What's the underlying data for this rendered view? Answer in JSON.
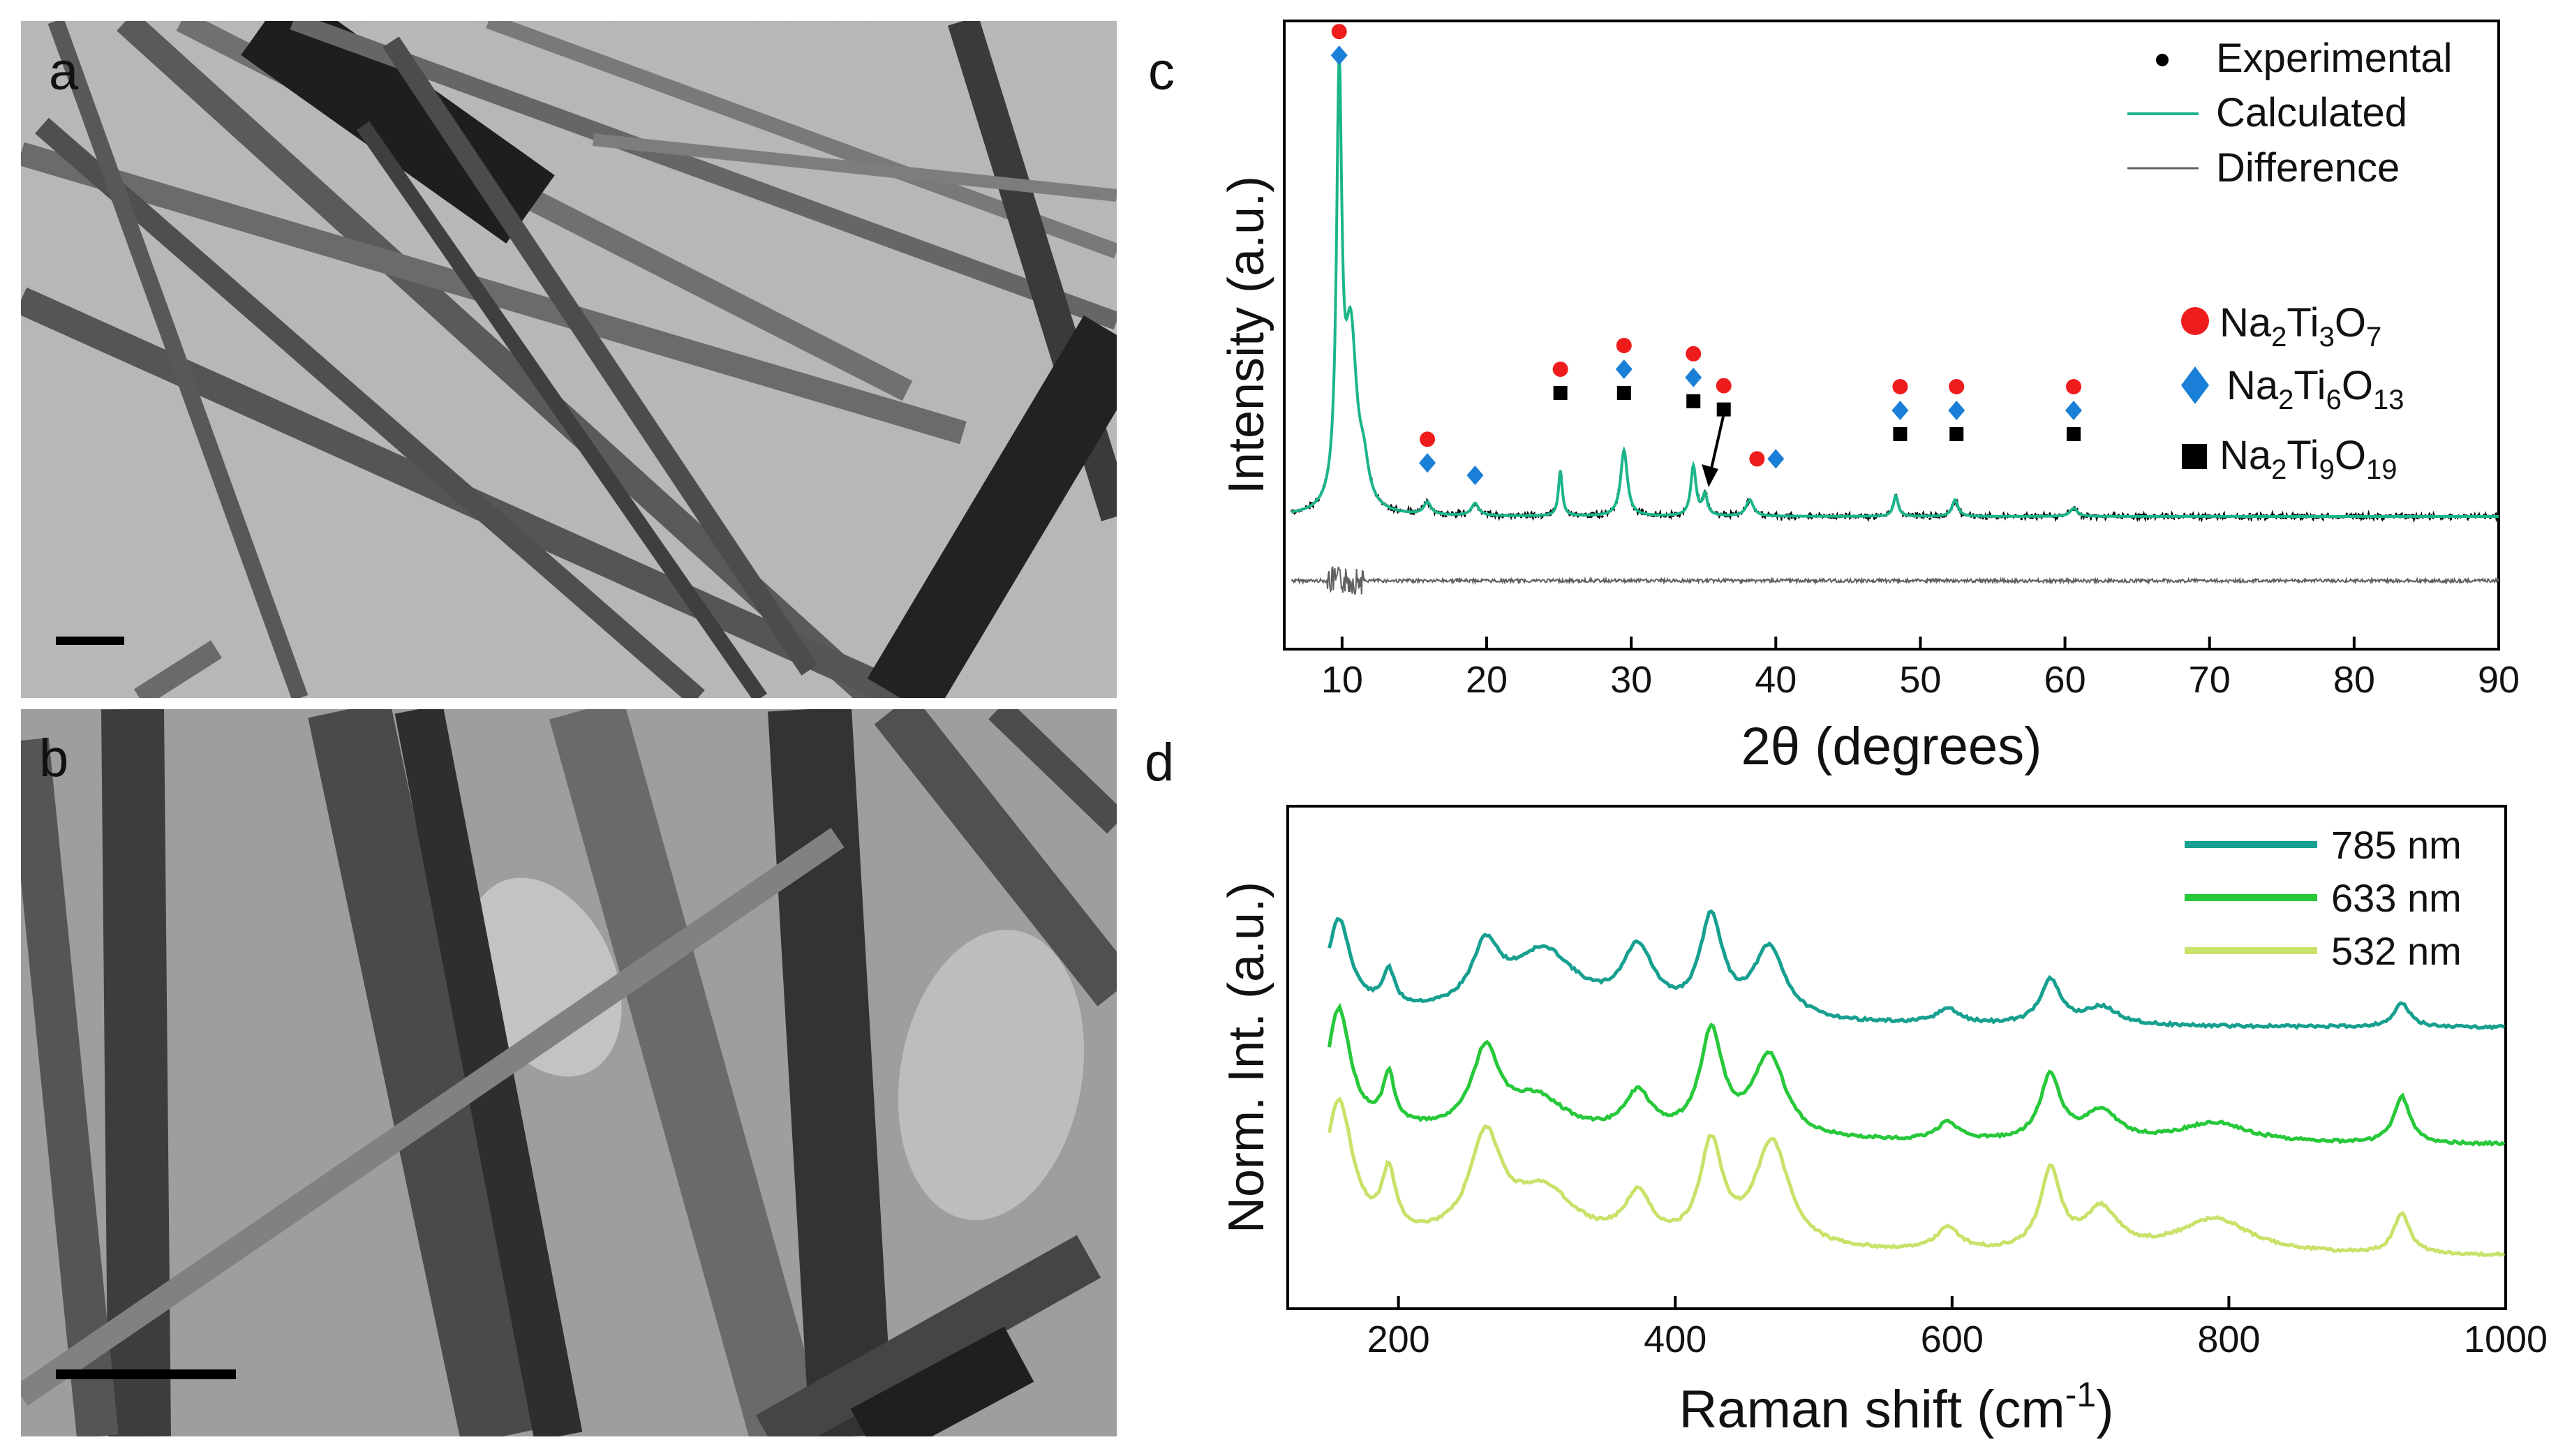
{
  "panels": {
    "a": {
      "label": "a",
      "description_hidden": true
    },
    "b": {
      "label": "b"
    },
    "c": {
      "label": "c"
    },
    "d": {
      "label": "d"
    }
  },
  "colors": {
    "experimental": "#000000",
    "calculated": "#1bb58a",
    "difference": "#606060",
    "na2ti3o7": "#ee1c1c",
    "na2ti6o13": "#1a7fd6",
    "na2ti9o19": "#000000",
    "r785": "#17a090",
    "r633": "#27c83a",
    "r532": "#c8e26a"
  },
  "chart_data": [
    {
      "type": "line",
      "panel": "c",
      "title": "",
      "xlabel": "2θ (degrees)",
      "ylabel": "Intensity (a.u.)",
      "xlim": [
        6,
        90
      ],
      "xticks": [
        10,
        20,
        30,
        40,
        50,
        60,
        70,
        80,
        90
      ],
      "legend": [
        {
          "label": "Experimental",
          "marker": "dot"
        },
        {
          "label": "Calculated",
          "marker": "line"
        },
        {
          "label": "Difference",
          "marker": "line"
        }
      ],
      "phases": [
        {
          "name": "Na2Ti3O7",
          "base": "Na",
          "s1": "2",
          "mid": "Ti",
          "s2": "3",
          "o": "O",
          "s3": "7",
          "symbol": "circle"
        },
        {
          "name": "Na2Ti6O13",
          "base": "Na",
          "s1": "2",
          "mid": "Ti",
          "s2": "6",
          "o": "O",
          "s3": "13",
          "symbol": "diamond"
        },
        {
          "name": "Na2Ti9O19",
          "base": "Na",
          "s1": "2",
          "mid": "Ti",
          "s2": "9",
          "o": "O",
          "s3": "19",
          "symbol": "square"
        }
      ],
      "peaks": [
        {
          "x": 9.8,
          "h": 1.0,
          "w": 0.22
        },
        {
          "x": 10.6,
          "h": 0.42,
          "w": 0.5
        },
        {
          "x": 11.5,
          "h": 0.08,
          "w": 0.4
        },
        {
          "x": 15.9,
          "h": 0.03,
          "w": 0.3
        },
        {
          "x": 19.2,
          "h": 0.03,
          "w": 0.3
        },
        {
          "x": 25.1,
          "h": 0.11,
          "w": 0.16
        },
        {
          "x": 29.5,
          "h": 0.16,
          "w": 0.28
        },
        {
          "x": 34.3,
          "h": 0.12,
          "w": 0.22
        },
        {
          "x": 35.1,
          "h": 0.05,
          "w": 0.2
        },
        {
          "x": 38.2,
          "h": 0.04,
          "w": 0.3
        },
        {
          "x": 48.3,
          "h": 0.05,
          "w": 0.2
        },
        {
          "x": 52.4,
          "h": 0.04,
          "w": 0.25
        },
        {
          "x": 60.6,
          "h": 0.02,
          "w": 0.3
        }
      ],
      "markers": [
        {
          "x": 9.8,
          "stack": [
            "circle",
            "diamond"
          ],
          "level": 1.12
        },
        {
          "x": 15.9,
          "stack": [
            "circle",
            "diamond"
          ],
          "level": 0.13
        },
        {
          "x": 19.2,
          "stack": [
            "diamond"
          ],
          "level": 0.1
        },
        {
          "x": 25.1,
          "stack": [
            "circle",
            "square"
          ],
          "level": 0.3
        },
        {
          "x": 29.5,
          "stack": [
            "circle",
            "diamond",
            "square"
          ],
          "level": 0.3
        },
        {
          "x": 34.3,
          "stack": [
            "circle",
            "diamond",
            "square"
          ],
          "level": 0.28
        },
        {
          "x": 36.4,
          "stack": [
            "circle",
            "square"
          ],
          "level": 0.26
        },
        {
          "x": 38.7,
          "stack": [
            "circle"
          ],
          "level": 0.14
        },
        {
          "x": 40.0,
          "stack": [
            "diamond"
          ],
          "level": 0.14
        },
        {
          "x": 48.6,
          "stack": [
            "circle",
            "diamond",
            "square"
          ],
          "level": 0.2
        },
        {
          "x": 52.5,
          "stack": [
            "circle",
            "diamond",
            "square"
          ],
          "level": 0.2
        },
        {
          "x": 60.6,
          "stack": [
            "circle",
            "diamond",
            "square"
          ],
          "level": 0.2
        }
      ]
    },
    {
      "type": "line",
      "panel": "d",
      "title": "",
      "xlabel": "Raman shift (cm",
      "xlabel_sup": "-1",
      "xlabel_end": ")",
      "ylabel": "Norm. Int. (a.u.)",
      "xlim": [
        120,
        1000
      ],
      "xticks": [
        200,
        400,
        600,
        800,
        1000
      ],
      "series": [
        {
          "name": "785 nm",
          "offset": 0.78,
          "baseline": 0.0,
          "peaks": [
            {
              "x": 157,
              "h": 0.3,
              "w": 10
            },
            {
              "x": 193,
              "h": 0.12,
              "w": 5
            },
            {
              "x": 263,
              "h": 0.2,
              "w": 12
            },
            {
              "x": 305,
              "h": 0.22,
              "w": 30
            },
            {
              "x": 373,
              "h": 0.22,
              "w": 14
            },
            {
              "x": 426,
              "h": 0.33,
              "w": 10
            },
            {
              "x": 468,
              "h": 0.24,
              "w": 14
            },
            {
              "x": 597,
              "h": 0.05,
              "w": 10
            },
            {
              "x": 671,
              "h": 0.15,
              "w": 9
            },
            {
              "x": 708,
              "h": 0.06,
              "w": 15
            },
            {
              "x": 925,
              "h": 0.08,
              "w": 7
            }
          ]
        },
        {
          "name": "633 nm",
          "offset": 0.38,
          "baseline": 0.0,
          "peaks": [
            {
              "x": 157,
              "h": 0.4,
              "w": 10
            },
            {
              "x": 193,
              "h": 0.17,
              "w": 5
            },
            {
              "x": 263,
              "h": 0.27,
              "w": 12
            },
            {
              "x": 300,
              "h": 0.12,
              "w": 25
            },
            {
              "x": 373,
              "h": 0.14,
              "w": 12
            },
            {
              "x": 426,
              "h": 0.35,
              "w": 10
            },
            {
              "x": 468,
              "h": 0.28,
              "w": 14
            },
            {
              "x": 597,
              "h": 0.06,
              "w": 10
            },
            {
              "x": 671,
              "h": 0.22,
              "w": 9
            },
            {
              "x": 708,
              "h": 0.1,
              "w": 15
            },
            {
              "x": 790,
              "h": 0.07,
              "w": 30
            },
            {
              "x": 925,
              "h": 0.16,
              "w": 7
            }
          ]
        },
        {
          "name": "532 nm",
          "offset": 0.0,
          "baseline": 0.0,
          "peaks": [
            {
              "x": 157,
              "h": 0.46,
              "w": 12
            },
            {
              "x": 193,
              "h": 0.2,
              "w": 6
            },
            {
              "x": 263,
              "h": 0.34,
              "w": 14
            },
            {
              "x": 305,
              "h": 0.18,
              "w": 28
            },
            {
              "x": 373,
              "h": 0.16,
              "w": 12
            },
            {
              "x": 426,
              "h": 0.34,
              "w": 10
            },
            {
              "x": 470,
              "h": 0.36,
              "w": 15
            },
            {
              "x": 597,
              "h": 0.08,
              "w": 10
            },
            {
              "x": 671,
              "h": 0.27,
              "w": 9
            },
            {
              "x": 708,
              "h": 0.14,
              "w": 15
            },
            {
              "x": 790,
              "h": 0.12,
              "w": 32
            },
            {
              "x": 925,
              "h": 0.14,
              "w": 7
            }
          ]
        }
      ]
    }
  ]
}
